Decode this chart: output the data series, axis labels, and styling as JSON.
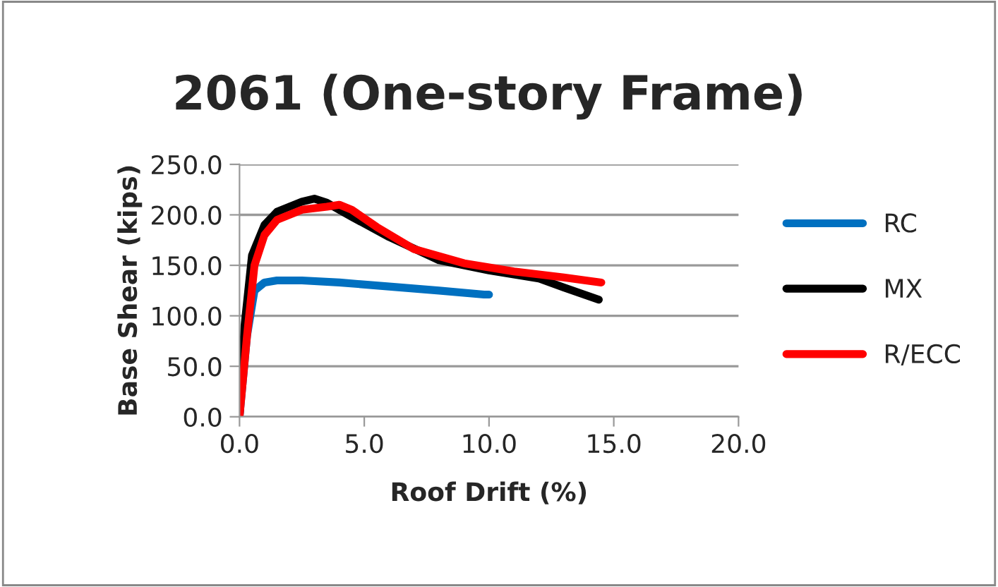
{
  "chart_data": {
    "type": "line",
    "title": "2061 (One-story Frame)",
    "xlabel": "Roof Drift (%)",
    "ylabel": "Base Shear (kips)",
    "xlim": [
      0,
      20
    ],
    "xticks": [
      {
        "value": 0,
        "label": "0.0"
      },
      {
        "value": 5,
        "label": "5.0"
      },
      {
        "value": 10,
        "label": "10.0"
      },
      {
        "value": 15,
        "label": "15.0"
      },
      {
        "value": 20,
        "label": "20.0"
      }
    ],
    "ylim": [
      0,
      250
    ],
    "yticks": [
      {
        "value": 0,
        "label": "0.0"
      },
      {
        "value": 50,
        "label": "50.0"
      },
      {
        "value": 100,
        "label": "100.0"
      },
      {
        "value": 150,
        "label": "150.0"
      },
      {
        "value": 200,
        "label": "200.0"
      },
      {
        "value": 250,
        "label": "250.0"
      }
    ],
    "grid": "y",
    "legend": "right",
    "marker": "none",
    "line_style": "solid",
    "series": [
      {
        "name": "RC",
        "color": "#0070c0",
        "x": [
          0,
          0.3,
          0.6,
          1,
          1.5,
          2.5,
          4,
          6,
          8,
          9.8,
          10
        ],
        "values": [
          0,
          80,
          125,
          133,
          135,
          135,
          133,
          129,
          125,
          121,
          121
        ]
      },
      {
        "name": "MX",
        "color": "#000000",
        "x": [
          0,
          0.2,
          0.5,
          1,
          1.5,
          2.5,
          3,
          3.5,
          4.5,
          6,
          8,
          10,
          12,
          13,
          14.4
        ],
        "values": [
          0,
          90,
          160,
          190,
          203,
          213,
          216,
          212,
          198,
          178,
          155,
          145,
          137,
          128,
          116
        ]
      },
      {
        "name": "R/ECC",
        "color": "#ff0000",
        "x": [
          0,
          0.3,
          0.6,
          1,
          1.5,
          2.5,
          3.5,
          4,
          4.5,
          5.5,
          7,
          9,
          11,
          13,
          14.5
        ],
        "values": [
          0,
          80,
          150,
          180,
          195,
          205,
          208,
          210,
          205,
          188,
          166,
          152,
          144,
          138,
          133
        ]
      }
    ]
  }
}
